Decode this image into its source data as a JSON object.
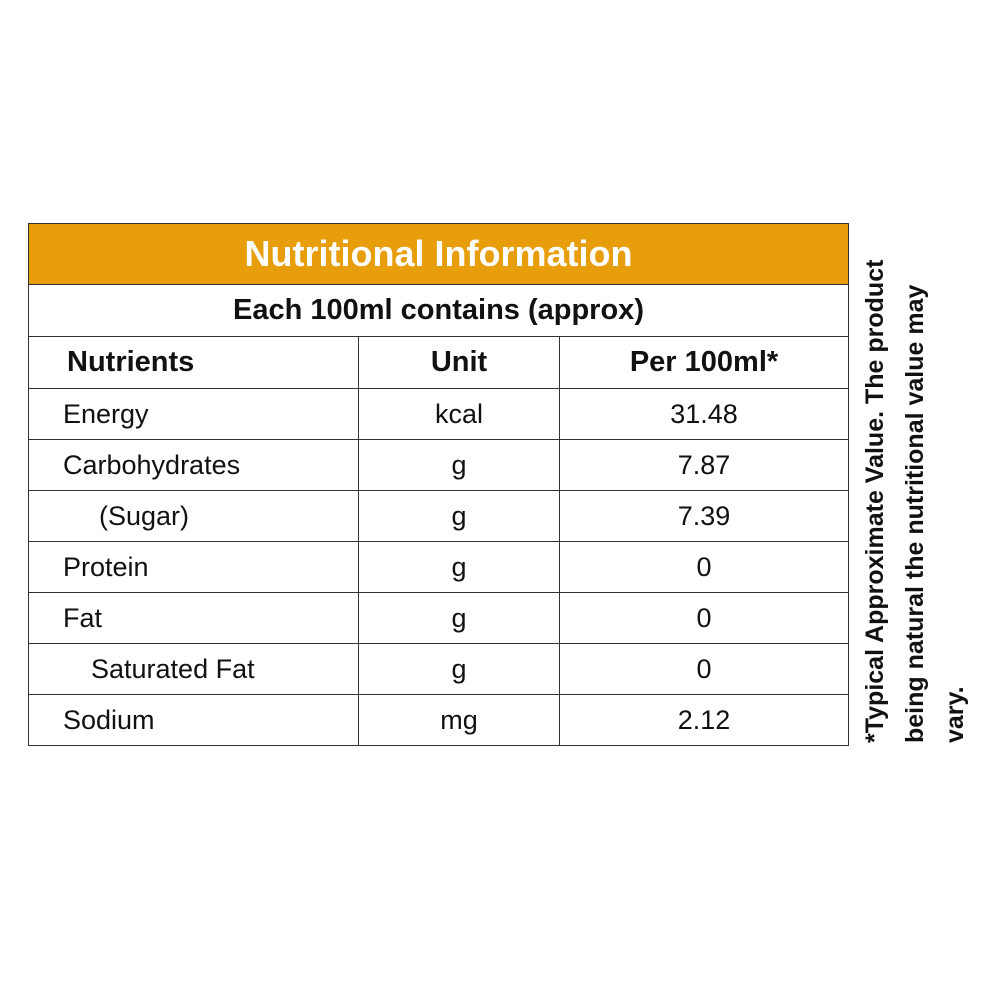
{
  "colors": {
    "header_background": "#E89D0B",
    "border": "#333333",
    "header_text": "#ffffff"
  },
  "table": {
    "title": "Nutritional Information",
    "subtitle": "Each 100ml contains (approx)",
    "columns": [
      "Nutrients",
      "Unit",
      "Per 100ml*"
    ],
    "rows": [
      {
        "nutrient": "Energy",
        "unit": "kcal",
        "value": "31.48"
      },
      {
        "nutrient": "Carbohydrates",
        "unit": "g",
        "value": "7.87"
      },
      {
        "nutrient": "(Sugar)",
        "unit": "g",
        "value": "7.39"
      },
      {
        "nutrient": "Protein",
        "unit": "g",
        "value": "0"
      },
      {
        "nutrient": "Fat",
        "unit": "g",
        "value": "0"
      },
      {
        "nutrient": "Saturated Fat",
        "unit": "g",
        "value": "0"
      },
      {
        "nutrient": "Sodium",
        "unit": "mg",
        "value": "2.12"
      }
    ]
  },
  "footnote": "*Typical Approximate Value. The product being natural the nutritional value may vary."
}
